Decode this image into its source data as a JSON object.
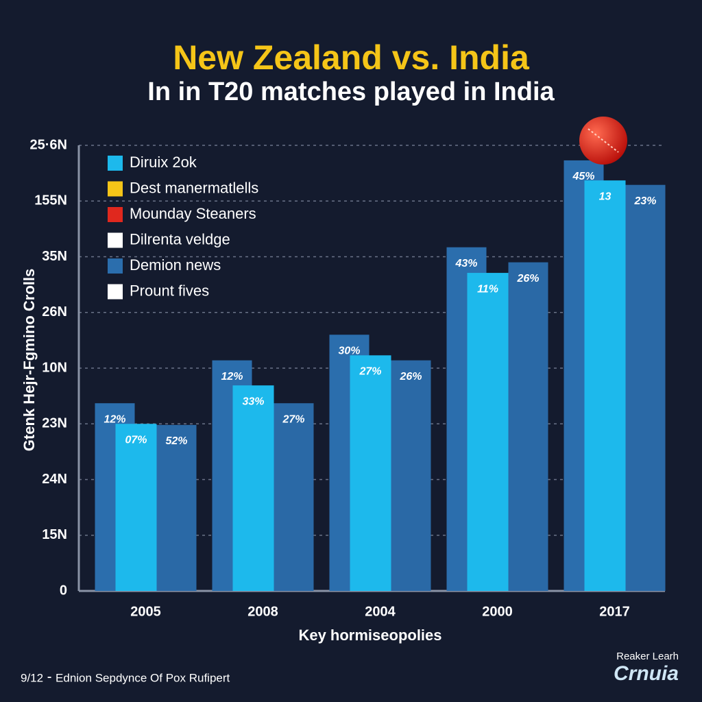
{
  "chart_data": {
    "type": "bar",
    "title": "New Zealand vs. India",
    "subtitle": "In in T20 matches played in India",
    "y_label": "Gtenk Hejr-Fgmino Crolls",
    "x_label": "Key hormiseopolies",
    "footer": "9/12 ⁃ Ednion Sepdynce Of Pox Rufipert",
    "logo": [
      "Reaker Learh",
      "Crnuia"
    ],
    "categories": [
      "2005",
      "2008",
      "2004",
      "2000",
      "2017"
    ],
    "series": [
      {
        "color": "#2b6ead",
        "values": [
          3.37,
          4.14,
          4.6,
          6.17,
          7.73
        ],
        "labels": [
          "12%",
          "12%",
          "30%",
          "43%",
          "45%"
        ]
      },
      {
        "color": "#2a69a6",
        "values": [
          2.98,
          3.37,
          4.14,
          5.9,
          7.29
        ],
        "labels": [
          "52%",
          "27%",
          "26%",
          "26%",
          "23%"
        ]
      },
      {
        "color": "#1db9ec",
        "values": [
          3.0,
          3.69,
          4.23,
          5.71,
          7.37
        ],
        "labels": [
          "07%",
          "33%",
          "27%",
          "11%",
          "13"
        ]
      }
    ],
    "legend": [
      {
        "name": "Diruix 2ok",
        "color": "#1db9ec"
      },
      {
        "name": "Dest manermatlells",
        "color": "#f5c518"
      },
      {
        "name": "Mounday Steaners",
        "color": "#e0281e"
      },
      {
        "name": "Dilrenta veldge",
        "color": "#ffffff"
      },
      {
        "name": "Demion news",
        "color": "#2b6ead"
      },
      {
        "name": "Prount fives",
        "color": "#ffffff"
      }
    ],
    "ylim": [
      0,
      8
    ],
    "yticks": [
      0,
      {
        "value": 1,
        "label": "15N"
      },
      {
        "value": 2,
        "label": "24N"
      },
      {
        "value": 3,
        "label": "23N"
      },
      {
        "value": 4,
        "label": "10N"
      },
      {
        "value": 5,
        "label": "26N"
      },
      {
        "value": 6,
        "label": "35N"
      },
      {
        "value": 7,
        "label": "155N"
      },
      {
        "value": 8,
        "label": "25·6N"
      }
    ],
    "grid": true
  }
}
